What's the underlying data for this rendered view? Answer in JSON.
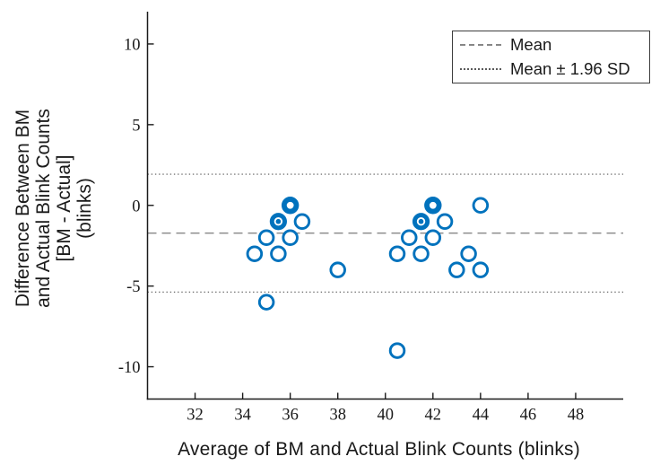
{
  "figure": {
    "x_label": "Average of BM and Actual Blink Counts (blinks)",
    "y_label_lines": [
      "Difference Between BM",
      "and Actual Blink Counts",
      "[BM - Actual]",
      "(blinks)"
    ],
    "legend": {
      "items": [
        {
          "label": "Mean",
          "line_style": "dashed"
        },
        {
          "label": "Mean ± 1.96 SD",
          "line_style": "dotted"
        }
      ]
    }
  },
  "chart_data": {
    "type": "scatter",
    "title": "",
    "xlabel": "Average of BM and Actual Blink Counts (blinks)",
    "ylabel": "Difference Between BM and Actual Blink Counts [BM - Actual] (blinks)",
    "xlim": [
      30,
      50
    ],
    "ylim": [
      -12,
      12
    ],
    "x_ticks": [
      32,
      34,
      36,
      38,
      40,
      42,
      44,
      46,
      48
    ],
    "y_ticks": [
      10,
      5,
      0,
      -5,
      -10
    ],
    "grid": false,
    "legend_position": "top-right",
    "legend_entries": [
      "Mean",
      "Mean ± 1.96 SD"
    ],
    "marker_color": "#0072BD",
    "axis_color": "#1a1a1a",
    "mean_line_color": "#878787",
    "loa_line_color": "#5a5a5a",
    "reference_lines": {
      "mean": -1.72,
      "upper_loa": 1.93,
      "lower_loa": -5.37
    },
    "points": [
      {
        "x": 36,
        "y": 0,
        "style": "bold"
      },
      {
        "x": 35.5,
        "y": -1,
        "style": "bullseye"
      },
      {
        "x": 36.5,
        "y": -1,
        "style": "open"
      },
      {
        "x": 35,
        "y": -2,
        "style": "open"
      },
      {
        "x": 36,
        "y": -2,
        "style": "open"
      },
      {
        "x": 34.5,
        "y": -3,
        "style": "open"
      },
      {
        "x": 35.5,
        "y": -3,
        "style": "open"
      },
      {
        "x": 38,
        "y": -4,
        "style": "open"
      },
      {
        "x": 35,
        "y": -6,
        "style": "open"
      },
      {
        "x": 42,
        "y": 0,
        "style": "bold"
      },
      {
        "x": 44,
        "y": 0,
        "style": "open"
      },
      {
        "x": 41.5,
        "y": -1,
        "style": "bullseye"
      },
      {
        "x": 42.5,
        "y": -1,
        "style": "open"
      },
      {
        "x": 41,
        "y": -2,
        "style": "open"
      },
      {
        "x": 42,
        "y": -2,
        "style": "open"
      },
      {
        "x": 40.5,
        "y": -3,
        "style": "open"
      },
      {
        "x": 41.5,
        "y": -3,
        "style": "open"
      },
      {
        "x": 43.5,
        "y": -3,
        "style": "open"
      },
      {
        "x": 43,
        "y": -4,
        "style": "open"
      },
      {
        "x": 44,
        "y": -4,
        "style": "open"
      },
      {
        "x": 40.5,
        "y": -9,
        "style": "open"
      }
    ]
  }
}
